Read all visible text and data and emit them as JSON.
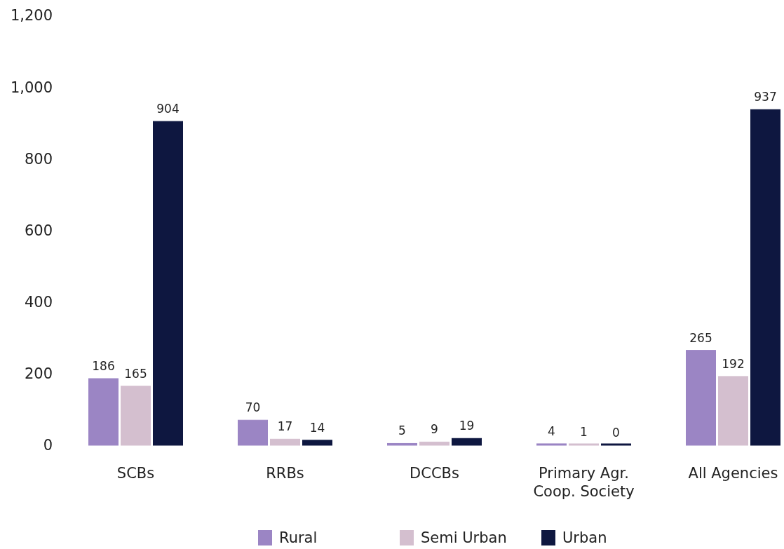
{
  "chart_data": {
    "type": "bar",
    "categories": [
      "SCBs",
      "RRBs",
      "DCCBs",
      "Primary Agr. Coop. Society",
      "All Agencies"
    ],
    "series": [
      {
        "name": "Rural",
        "color": "#9b85c4",
        "values": [
          186,
          70,
          5,
          4,
          265
        ]
      },
      {
        "name": "Semi Urban",
        "color": "#d4bfcf",
        "values": [
          165,
          17,
          9,
          1,
          192
        ]
      },
      {
        "name": "Urban",
        "color": "#0e1740",
        "values": [
          904,
          14,
          19,
          0,
          937
        ]
      }
    ],
    "ylim": [
      0,
      1200
    ],
    "yticks": [
      0,
      200,
      400,
      600,
      800,
      {
        "value": 1000,
        "label": "1,000"
      },
      {
        "value": 1200,
        "label": "1,200"
      }
    ],
    "data_labels": true,
    "legend": "bottom",
    "grid": false
  }
}
